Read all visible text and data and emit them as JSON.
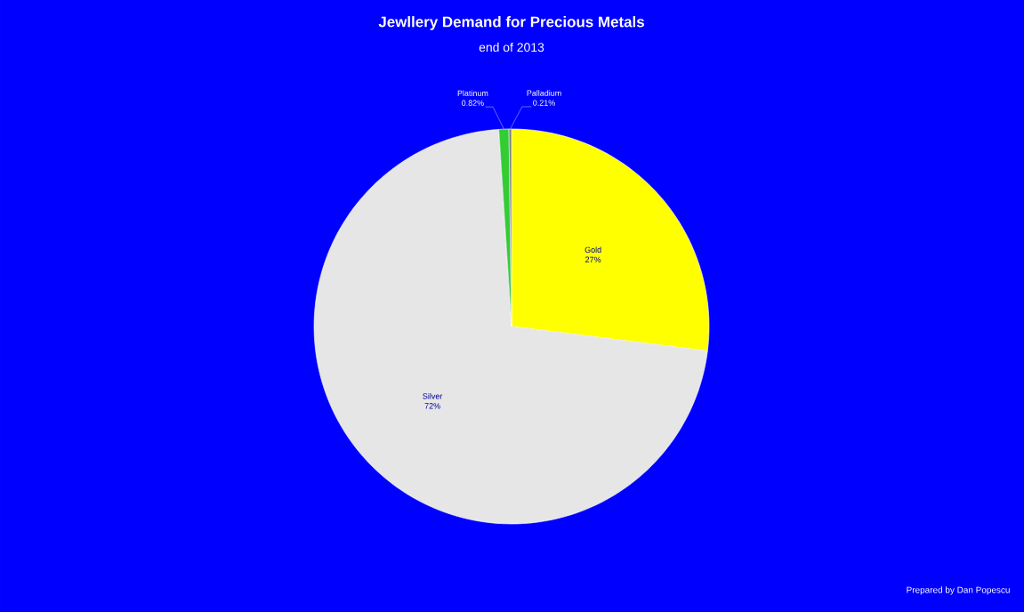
{
  "chart_data": {
    "type": "pie",
    "title": "Jewllery Demand for Precious Metals",
    "subtitle": "end of 2013",
    "categories": [
      "Gold",
      "Silver",
      "Platinum",
      "Palladium"
    ],
    "values": [
      27,
      72,
      0.82,
      0.21
    ],
    "value_labels": [
      "27%",
      "72%",
      "0.82%",
      "0.21%"
    ],
    "colors": [
      "#ffff00",
      "#e6e6e6",
      "#33cc33",
      "#808080"
    ],
    "annotations": [
      "Prepared by Dan Popescu"
    ]
  }
}
